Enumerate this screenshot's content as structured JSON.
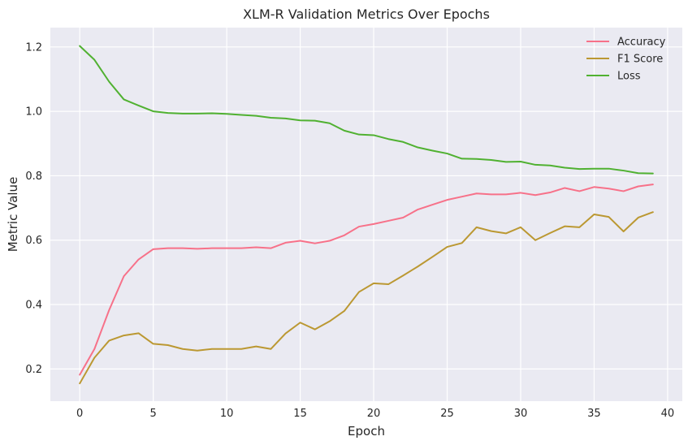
{
  "chart_data": {
    "type": "line",
    "title": "XLM-R Validation Metrics Over Epochs",
    "xlabel": "Epoch",
    "ylabel": "Metric Value",
    "xlim": [
      -2,
      41
    ],
    "ylim": [
      0.1,
      1.26
    ],
    "xticks": [
      0,
      5,
      10,
      15,
      20,
      25,
      30,
      35,
      40
    ],
    "yticks": [
      0.2,
      0.4,
      0.6,
      0.8,
      1.0,
      1.2
    ],
    "grid": true,
    "legend_position": "top-right",
    "x": [
      0,
      1,
      2,
      3,
      4,
      5,
      6,
      7,
      8,
      9,
      10,
      11,
      12,
      13,
      14,
      15,
      16,
      17,
      18,
      19,
      20,
      21,
      22,
      23,
      24,
      25,
      26,
      27,
      28,
      29,
      30,
      31,
      32,
      33,
      34,
      35,
      36,
      37,
      38,
      39
    ],
    "series": [
      {
        "name": "Accuracy",
        "color": "#f77189",
        "values": [
          0.182,
          0.262,
          0.383,
          0.488,
          0.54,
          0.572,
          0.575,
          0.575,
          0.573,
          0.575,
          0.575,
          0.575,
          0.578,
          0.575,
          0.592,
          0.598,
          0.59,
          0.598,
          0.615,
          0.642,
          0.65,
          0.66,
          0.67,
          0.695,
          0.71,
          0.725,
          0.735,
          0.745,
          0.742,
          0.742,
          0.747,
          0.74,
          0.748,
          0.762,
          0.752,
          0.765,
          0.76,
          0.752,
          0.767,
          0.773
        ]
      },
      {
        "name": "F1 Score",
        "color": "#bb9832",
        "values": [
          0.155,
          0.235,
          0.288,
          0.304,
          0.311,
          0.278,
          0.274,
          0.262,
          0.257,
          0.262,
          0.262,
          0.262,
          0.27,
          0.262,
          0.31,
          0.344,
          0.323,
          0.348,
          0.38,
          0.439,
          0.466,
          0.463,
          0.49,
          0.518,
          0.548,
          0.579,
          0.591,
          0.64,
          0.628,
          0.621,
          0.64,
          0.6,
          0.622,
          0.643,
          0.64,
          0.68,
          0.672,
          0.627,
          0.67,
          0.687
        ]
      },
      {
        "name": "Loss",
        "color": "#50b131",
        "values": [
          1.203,
          1.16,
          1.092,
          1.037,
          1.018,
          1.0,
          0.995,
          0.993,
          0.993,
          0.994,
          0.992,
          0.989,
          0.986,
          0.98,
          0.978,
          0.972,
          0.971,
          0.963,
          0.94,
          0.928,
          0.926,
          0.914,
          0.905,
          0.888,
          0.878,
          0.869,
          0.853,
          0.852,
          0.849,
          0.843,
          0.844,
          0.834,
          0.832,
          0.825,
          0.821,
          0.822,
          0.822,
          0.816,
          0.808,
          0.807
        ]
      }
    ]
  }
}
